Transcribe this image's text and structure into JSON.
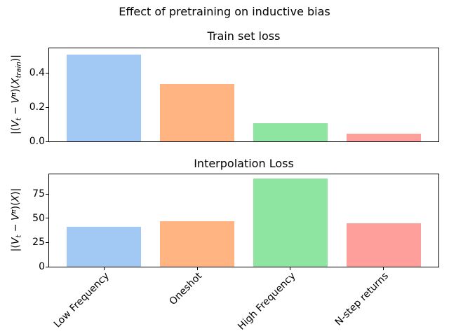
{
  "suptitle": "Effect of pretraining on inductive bias",
  "categories": [
    "Low Frequency",
    "Oneshot",
    "High Frequency",
    "N-step returns"
  ],
  "palette": [
    "#a1c9f4",
    "#ffb482",
    "#8de5a1",
    "#ff9f9b"
  ],
  "chart_data": [
    {
      "type": "bar",
      "title": "Train set loss",
      "categories": [
        "Low Frequency",
        "Oneshot",
        "High Frequency",
        "N-step returns"
      ],
      "values": [
        0.51,
        0.335,
        0.105,
        0.045
      ],
      "colors": [
        "#a1c9f4",
        "#ffb482",
        "#8de5a1",
        "#ff9f9b"
      ],
      "ylabel": "|(V_t − V^π)(X_train)|",
      "ylabel_parts": [
        {
          "t": "|("
        },
        {
          "t": "V",
          "i": true
        },
        {
          "t": "t",
          "i": true,
          "sub": true
        },
        {
          "t": " − "
        },
        {
          "t": "V",
          "i": true
        },
        {
          "t": "π",
          "i": true,
          "sup": true
        },
        {
          "t": ")("
        },
        {
          "t": "X",
          "i": true
        },
        {
          "t": "train",
          "i": true,
          "sub": true
        },
        {
          "t": ")|"
        }
      ],
      "yticks": [
        0,
        0.2,
        0.4
      ],
      "ytick_labels": [
        "0.0",
        "0.2",
        "0.4"
      ],
      "ylim": [
        0,
        0.545
      ],
      "xlabel": "",
      "grid": false,
      "legend": null,
      "show_xtick_labels": false
    },
    {
      "type": "bar",
      "title": "Interpolation Loss",
      "categories": [
        "Low Frequency",
        "Oneshot",
        "High Frequency",
        "N-step returns"
      ],
      "values": [
        41,
        47,
        91,
        45
      ],
      "colors": [
        "#a1c9f4",
        "#ffb482",
        "#8de5a1",
        "#ff9f9b"
      ],
      "ylabel": "|(V_t − V^π)(X)|",
      "ylabel_parts": [
        {
          "t": "|("
        },
        {
          "t": "V",
          "i": true
        },
        {
          "t": "t",
          "i": true,
          "sub": true
        },
        {
          "t": " − "
        },
        {
          "t": "V",
          "i": true
        },
        {
          "t": "π",
          "i": true,
          "sup": true
        },
        {
          "t": ")("
        },
        {
          "t": "X",
          "i": true
        },
        {
          "t": ")|"
        }
      ],
      "yticks": [
        0,
        25,
        50,
        75
      ],
      "ytick_labels": [
        "0",
        "25",
        "50",
        "75"
      ],
      "ylim": [
        0,
        95.5
      ],
      "xlabel": "",
      "grid": false,
      "legend": null,
      "show_xtick_labels": true
    }
  ]
}
